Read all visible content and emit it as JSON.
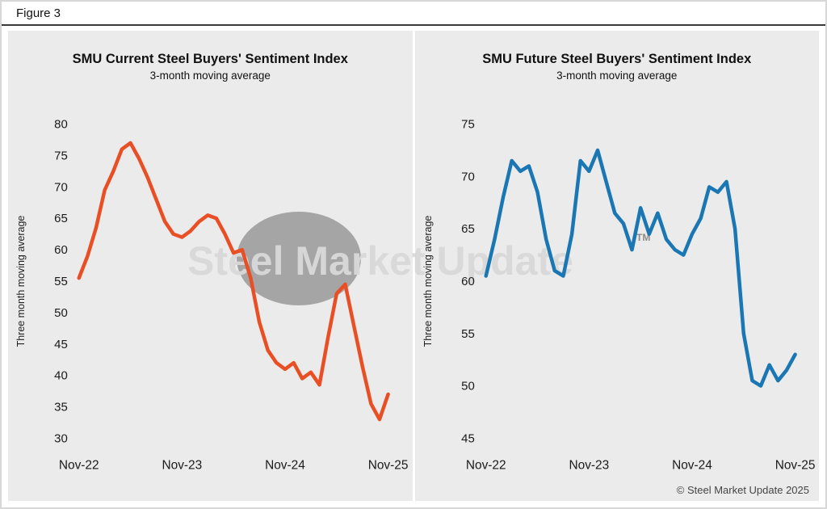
{
  "figure": {
    "label": "Figure 3"
  },
  "watermark": {
    "text": "Steel Market Update",
    "tm": "TM"
  },
  "footer": {
    "copyright": "© Steel Market Update 2025"
  },
  "chart_data": [
    {
      "type": "line",
      "title": "SMU Current Steel Buyers' Sentiment Index",
      "subtitle": "3-month moving average",
      "ylabel": "Three month moving average",
      "color": "#e94f25",
      "ylim": [
        30,
        80
      ],
      "ytick_step": 5,
      "legend": "none",
      "grid": false,
      "x_ticks": [
        "Nov-22",
        "Nov-23",
        "Nov-24",
        "Nov-25"
      ],
      "x": [
        "Nov-22",
        "Dec-22",
        "Jan-23",
        "Feb-23",
        "Mar-23",
        "Apr-23",
        "May-23",
        "Jun-23",
        "Jul-23",
        "Aug-23",
        "Sep-23",
        "Oct-23",
        "Nov-23",
        "Dec-23",
        "Jan-24",
        "Feb-24",
        "Mar-24",
        "Apr-24",
        "May-24",
        "Jun-24",
        "Jul-24",
        "Aug-24",
        "Sep-24",
        "Oct-24",
        "Nov-24",
        "Dec-24",
        "Jan-25",
        "Feb-25",
        "Mar-25",
        "Apr-25",
        "May-25",
        "Jun-25",
        "Jul-25",
        "Aug-25",
        "Sep-25",
        "Oct-25",
        "Nov-25"
      ],
      "values": [
        55.5,
        59,
        63.5,
        69.5,
        72.5,
        76,
        77,
        74.5,
        71.5,
        68,
        64.5,
        62.5,
        62,
        63,
        64.5,
        65.5,
        65,
        62.5,
        59.5,
        60,
        55.5,
        48.5,
        44,
        42,
        41,
        42,
        39.5,
        40.5,
        38.5,
        46,
        53,
        54.5,
        48,
        41.5,
        35.5,
        33,
        37
      ]
    },
    {
      "type": "line",
      "title": "SMU Future Steel Buyers' Sentiment Index",
      "subtitle": "3-month moving average",
      "ylabel": "Three month moving average",
      "color": "#1a77b4",
      "ylim": [
        45,
        75
      ],
      "ytick_step": 5,
      "legend": "none",
      "grid": false,
      "x_ticks": [
        "Nov-22",
        "Nov-23",
        "Nov-24",
        "Nov-25"
      ],
      "x": [
        "Nov-22",
        "Dec-22",
        "Jan-23",
        "Feb-23",
        "Mar-23",
        "Apr-23",
        "May-23",
        "Jun-23",
        "Jul-23",
        "Aug-23",
        "Sep-23",
        "Oct-23",
        "Nov-23",
        "Dec-23",
        "Jan-24",
        "Feb-24",
        "Mar-24",
        "Apr-24",
        "May-24",
        "Jun-24",
        "Jul-24",
        "Aug-24",
        "Sep-24",
        "Oct-24",
        "Nov-24",
        "Dec-24",
        "Jan-25",
        "Feb-25",
        "Mar-25",
        "Apr-25",
        "May-25",
        "Jun-25",
        "Jul-25",
        "Aug-25",
        "Sep-25",
        "Oct-25",
        "Nov-25"
      ],
      "values": [
        60.5,
        64,
        68,
        71.5,
        70.5,
        71,
        68.5,
        64,
        61,
        60.5,
        64.5,
        71.5,
        70.5,
        72.5,
        69.5,
        66.5,
        65.5,
        63,
        67,
        64.5,
        66.5,
        64,
        63,
        62.5,
        64.5,
        66,
        69,
        68.5,
        69.5,
        65,
        55,
        50.5,
        50,
        52,
        50.5,
        51.5,
        53
      ]
    }
  ]
}
